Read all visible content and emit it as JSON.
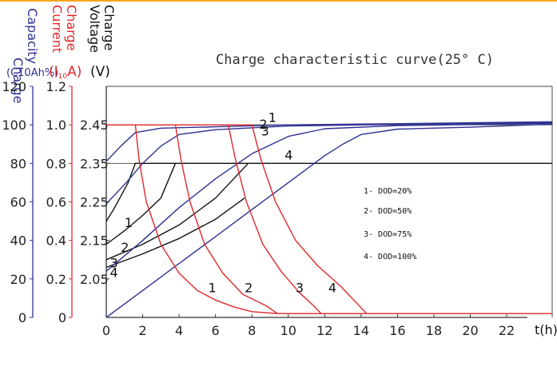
{
  "chart_data": {
    "type": "line",
    "title": "Charge characteristic curve(25° C)",
    "x_label": "t(h)",
    "x_ticks": [
      "0",
      "2",
      "4",
      "6",
      "8",
      "10",
      "12",
      "14",
      "16",
      "18",
      "20",
      "22"
    ],
    "x_range": [
      0,
      24.5
    ],
    "axes": {
      "capacity": {
        "label_line1": "Charge",
        "label_line2": "Capacity",
        "unit": "(C10Ah%)",
        "ticks": [
          "0",
          "20",
          "40",
          "60",
          "80",
          "100",
          "120"
        ],
        "color": "#2e3192"
      },
      "current": {
        "label_line1": "Charge",
        "label_line2": "Current",
        "unit_prefix": "(I",
        "unit_sub": "10",
        "unit_suffix": "A)",
        "ticks": [
          "0",
          "0.2",
          "0.4",
          "0.6",
          "0.8",
          "1.0",
          "1.2"
        ],
        "color": "#e0282b"
      },
      "voltage": {
        "label_line1": "Charge",
        "label_line2": "Voltage",
        "unit": "(V)",
        "ticks": [
          "2.05",
          "2.15",
          "2.25",
          "2.35",
          "2.45"
        ],
        "color": "#111111"
      }
    },
    "reference_lines": [
      {
        "name": "capacity-100-line",
        "y_pct": 100,
        "color": "#555555"
      },
      {
        "name": "current-0.8-line",
        "y_pct": 80,
        "color": "#555555"
      }
    ],
    "series": [
      {
        "id": "voltage",
        "color": "#111111",
        "curves": [
          {
            "label": "1",
            "points": [
              [
                0,
                50
              ],
              [
                0.4,
                56
              ],
              [
                0.8,
                63
              ],
              [
                1.2,
                70
              ],
              [
                1.6,
                80
              ],
              [
                24.5,
                80
              ]
            ]
          },
          {
            "label": "2",
            "points": [
              [
                0,
                38
              ],
              [
                1,
                45
              ],
              [
                2,
                53
              ],
              [
                3,
                62
              ],
              [
                3.8,
                80
              ]
            ]
          },
          {
            "label": "3",
            "points": [
              [
                0,
                30
              ],
              [
                2,
                38
              ],
              [
                4,
                48
              ],
              [
                6,
                62
              ],
              [
                7.8,
                80
              ]
            ]
          },
          {
            "label": "4",
            "points": [
              [
                0,
                26
              ],
              [
                2,
                33
              ],
              [
                4,
                41
              ],
              [
                6,
                51
              ],
              [
                7.6,
                62
              ]
            ]
          }
        ]
      },
      {
        "id": "capacity",
        "color": "#2e3192",
        "curves": [
          {
            "label": "1",
            "points": [
              [
                0,
                81
              ],
              [
                0.8,
                89
              ],
              [
                1.6,
                96
              ],
              [
                3,
                98.3
              ],
              [
                6,
                99
              ],
              [
                10,
                100
              ],
              [
                16,
                100.6
              ],
              [
                24.5,
                101.6
              ]
            ]
          },
          {
            "label": "2",
            "points": [
              [
                0,
                59
              ],
              [
                1,
                69
              ],
              [
                2,
                80
              ],
              [
                3,
                89
              ],
              [
                4,
                95
              ],
              [
                6,
                97.5
              ],
              [
                10,
                99.4
              ],
              [
                16,
                100.3
              ],
              [
                24.5,
                101.2
              ]
            ]
          },
          {
            "label": "3",
            "points": [
              [
                0,
                24
              ],
              [
                2,
                40
              ],
              [
                4,
                57
              ],
              [
                6,
                72
              ],
              [
                8,
                85
              ],
              [
                10,
                94
              ],
              [
                12,
                98
              ],
              [
                16,
                99.6
              ],
              [
                24.5,
                100.8
              ]
            ]
          },
          {
            "label": "4",
            "points": [
              [
                0,
                0
              ],
              [
                2,
                14
              ],
              [
                4,
                28
              ],
              [
                6,
                42
              ],
              [
                8,
                56
              ],
              [
                10,
                70
              ],
              [
                11,
                77
              ],
              [
                12,
                84
              ],
              [
                13,
                90
              ],
              [
                14,
                95
              ],
              [
                16,
                97.8
              ],
              [
                20,
                98.8
              ],
              [
                24.5,
                100.4
              ]
            ]
          }
        ]
      },
      {
        "id": "current",
        "color": "#e0282b",
        "curves": [
          {
            "label": "1",
            "points": [
              [
                0,
                100
              ],
              [
                1.6,
                100
              ],
              [
                1.8,
                82
              ],
              [
                2.2,
                60
              ],
              [
                3,
                38
              ],
              [
                4,
                23
              ],
              [
                5,
                14
              ],
              [
                6,
                9
              ],
              [
                7,
                5.5
              ],
              [
                8,
                3
              ],
              [
                9.4,
                2
              ],
              [
                24.5,
                2
              ]
            ]
          },
          {
            "label": "2",
            "points": [
              [
                1.6,
                100
              ],
              [
                3.8,
                100
              ],
              [
                4.1,
                82
              ],
              [
                4.6,
                60
              ],
              [
                5.4,
                38
              ],
              [
                6.4,
                23
              ],
              [
                7.5,
                12
              ],
              [
                8.8,
                6
              ],
              [
                9.4,
                2
              ]
            ]
          },
          {
            "label": "3",
            "points": [
              [
                3.8,
                100
              ],
              [
                6.7,
                100
              ],
              [
                7.1,
                82
              ],
              [
                7.7,
                60
              ],
              [
                8.6,
                38
              ],
              [
                9.6,
                24
              ],
              [
                10.6,
                13
              ],
              [
                11.4,
                6
              ],
              [
                11.8,
                2
              ]
            ]
          },
          {
            "label": "4",
            "points": [
              [
                6.7,
                100
              ],
              [
                8,
                100
              ],
              [
                8.5,
                82
              ],
              [
                9.3,
                60
              ],
              [
                10.4,
                40
              ],
              [
                11.6,
                27
              ],
              [
                12.9,
                16
              ],
              [
                13.7,
                8
              ],
              [
                14.3,
                2
              ]
            ]
          }
        ]
      }
    ],
    "curve_labels": {
      "voltage": [
        "1",
        "2",
        "3",
        "4"
      ],
      "capacity": [
        "1",
        "2",
        "3",
        "4"
      ],
      "current": [
        "1",
        "2",
        "3",
        "4"
      ]
    },
    "legend": [
      "1- DOD=20%",
      "2- DOD=50%",
      "3- DOD=75%",
      "4- DOD=100%"
    ],
    "grid": false
  }
}
